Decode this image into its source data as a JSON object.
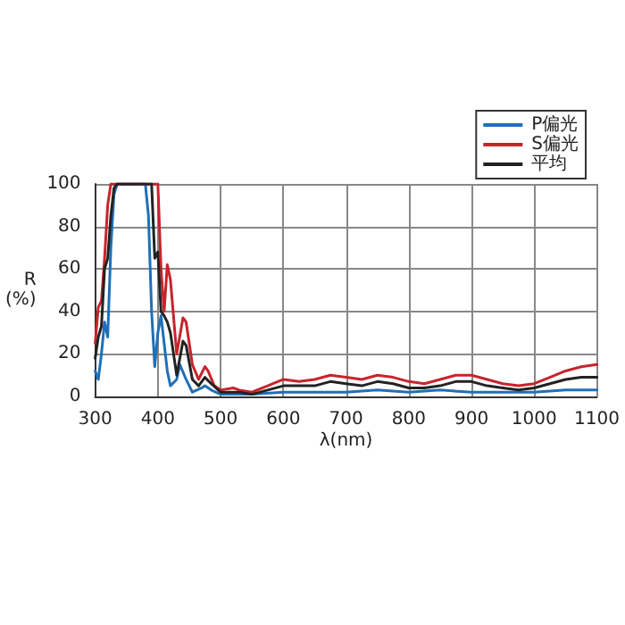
{
  "chart_data": {
    "type": "line",
    "xlabel": "λ(nm)",
    "ylabel": "R\n(%)",
    "xlim": [
      300,
      1100
    ],
    "xticks": [
      300,
      400,
      500,
      600,
      700,
      800,
      900,
      1000,
      1100
    ],
    "ylim": [
      0,
      100
    ],
    "yticks": [
      0,
      20,
      40,
      60,
      80,
      100
    ],
    "grid": true,
    "legend": "top right",
    "marker": "none",
    "line_style": "solid",
    "series": [
      {
        "name": "P偏光",
        "color": "#1f6fb8",
        "x": [
          300,
          305,
          310,
          315,
          320,
          325,
          330,
          335,
          340,
          380,
          385,
          390,
          395,
          400,
          405,
          410,
          415,
          420,
          430,
          435,
          445,
          455,
          470,
          475,
          485,
          500,
          550,
          600,
          650,
          700,
          750,
          800,
          850,
          900,
          950,
          1000,
          1050,
          1100
        ],
        "values": [
          12,
          8,
          20,
          35,
          28,
          70,
          95,
          100,
          100,
          100,
          85,
          40,
          14,
          30,
          38,
          25,
          12,
          5,
          8,
          15,
          8,
          2,
          4,
          5,
          3,
          1,
          1,
          2,
          2,
          2,
          3,
          2,
          3,
          2,
          2,
          2,
          3,
          3
        ]
      },
      {
        "name": "S偏光",
        "color": "#c8242b",
        "x": [
          300,
          305,
          310,
          315,
          320,
          325,
          330,
          400,
          405,
          410,
          415,
          420,
          430,
          440,
          445,
          455,
          465,
          475,
          480,
          490,
          500,
          520,
          530,
          550,
          575,
          600,
          625,
          650,
          675,
          700,
          725,
          750,
          775,
          800,
          825,
          850,
          875,
          900,
          925,
          950,
          975,
          1000,
          1025,
          1050,
          1075,
          1100
        ],
        "values": [
          25,
          42,
          45,
          65,
          90,
          100,
          100,
          100,
          60,
          40,
          62,
          55,
          20,
          37,
          35,
          15,
          8,
          14,
          12,
          5,
          3,
          4,
          3,
          2,
          5,
          8,
          7,
          8,
          10,
          9,
          8,
          10,
          9,
          7,
          6,
          8,
          10,
          10,
          8,
          6,
          5,
          6,
          9,
          12,
          14,
          15
        ]
      },
      {
        "name": "平均",
        "color": "#222222",
        "x": [
          300,
          305,
          310,
          315,
          320,
          325,
          330,
          335,
          390,
          395,
          400,
          405,
          410,
          415,
          420,
          430,
          440,
          445,
          455,
          465,
          475,
          485,
          500,
          530,
          550,
          575,
          600,
          625,
          650,
          675,
          700,
          725,
          750,
          775,
          800,
          825,
          850,
          875,
          900,
          925,
          950,
          975,
          1000,
          1025,
          1050,
          1075,
          1100
        ],
        "values": [
          18,
          28,
          33,
          60,
          65,
          85,
          98,
          100,
          100,
          65,
          68,
          40,
          38,
          35,
          30,
          10,
          26,
          24,
          8,
          5,
          9,
          6,
          2,
          2,
          1,
          3,
          5,
          5,
          5,
          7,
          6,
          5,
          7,
          6,
          4,
          4,
          5,
          7,
          7,
          5,
          4,
          3,
          4,
          6,
          8,
          9,
          9
        ]
      }
    ]
  }
}
